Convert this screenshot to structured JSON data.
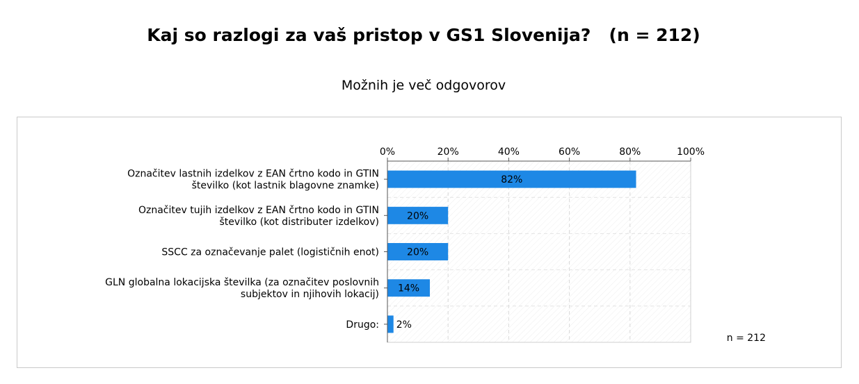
{
  "page": {
    "title": "Kaj so razlogi za vaš pristop v GS1 Slovenija?   (n = 212)",
    "subtitle": "Možnih je več odgovorov"
  },
  "chart_data": {
    "type": "bar",
    "orientation": "horizontal",
    "categories": [
      [
        "Označitev lastnih izdelkov z EAN črtno kodo in GTIN",
        "številko (kot lastnik blagovne znamke)"
      ],
      [
        "Označitev tujih izdelkov z EAN črtno kodo in GTIN",
        "številko (kot distributer izdelkov)"
      ],
      [
        "SSCC za označevanje palet (logističnih enot)"
      ],
      [
        "GLN globalna lokacijska številka (za označitev poslovnih",
        "subjektov in njihovih lokacij)"
      ],
      [
        "Drugo:"
      ]
    ],
    "values": [
      82,
      20,
      20,
      14,
      2
    ],
    "value_labels": [
      "82%",
      "20%",
      "20%",
      "14%",
      "2%"
    ],
    "xlim": [
      0,
      100
    ],
    "xticks": [
      0,
      20,
      40,
      60,
      80,
      100
    ],
    "xtick_labels": [
      "0%",
      "20%",
      "40%",
      "60%",
      "80%",
      "100%"
    ],
    "axis_position": "top",
    "grid": true,
    "bar_color": "#1e88e5",
    "note": "n = 212"
  }
}
